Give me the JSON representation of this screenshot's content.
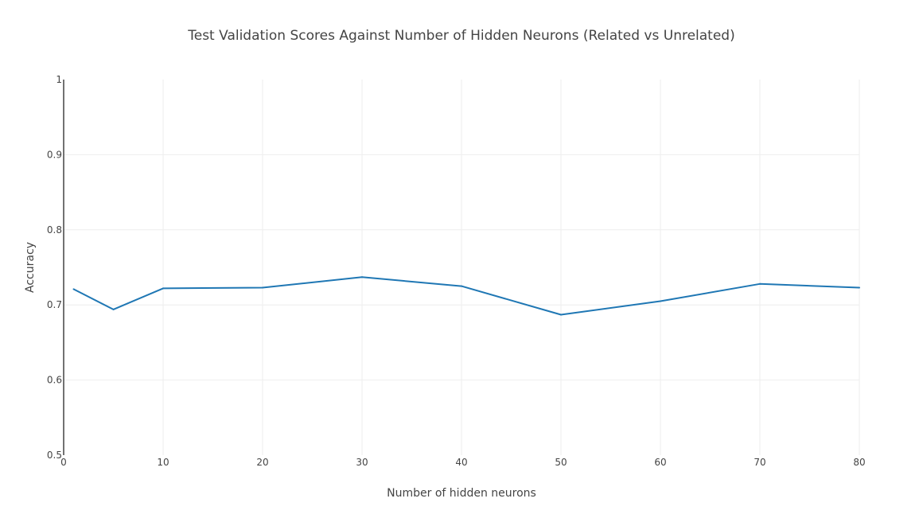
{
  "chart_data": {
    "type": "line",
    "title": "Test Validation Scores Against Number of Hidden Neurons (Related vs Unrelated)",
    "xlabel": "Number of hidden neurons",
    "ylabel": "Accuracy",
    "xlim": [
      0,
      80
    ],
    "ylim": [
      0.5,
      1
    ],
    "x_ticks": [
      "0",
      "10",
      "20",
      "30",
      "40",
      "50",
      "60",
      "70",
      "80"
    ],
    "y_ticks": [
      "0.5",
      "0.6",
      "0.7",
      "0.8",
      "0.9",
      "1"
    ],
    "grid": true,
    "series": [
      {
        "x": [
          1,
          5,
          10,
          20,
          30,
          40,
          50,
          60,
          70,
          80
        ],
        "y": [
          0.721,
          0.694,
          0.722,
          0.723,
          0.737,
          0.725,
          0.687,
          0.705,
          0.728,
          0.723
        ],
        "color": "#1f77b4"
      }
    ]
  }
}
